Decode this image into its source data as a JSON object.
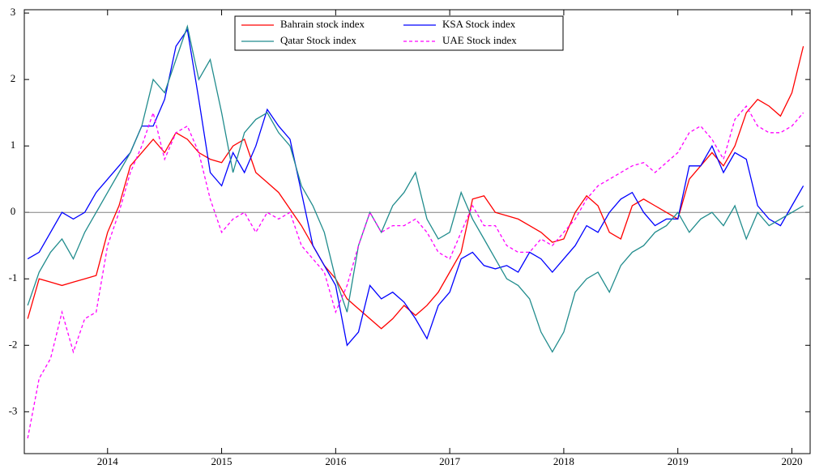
{
  "chart_data": {
    "type": "line",
    "x": [
      2013.3,
      2013.4,
      2013.5,
      2013.6,
      2013.7,
      2013.8,
      2013.9,
      2014.0,
      2014.1,
      2014.2,
      2014.3,
      2014.4,
      2014.5,
      2014.6,
      2014.7,
      2014.8,
      2014.9,
      2015.0,
      2015.1,
      2015.2,
      2015.3,
      2015.4,
      2015.5,
      2015.6,
      2015.7,
      2015.8,
      2015.9,
      2016.0,
      2016.1,
      2016.2,
      2016.3,
      2016.4,
      2016.5,
      2016.6,
      2016.7,
      2016.8,
      2016.9,
      2017.0,
      2017.1,
      2017.2,
      2017.3,
      2017.4,
      2017.5,
      2017.6,
      2017.7,
      2017.8,
      2017.9,
      2018.0,
      2018.1,
      2018.2,
      2018.3,
      2018.4,
      2018.5,
      2018.6,
      2018.7,
      2018.8,
      2018.9,
      2019.0,
      2019.1,
      2019.2,
      2019.3,
      2019.4,
      2019.5,
      2019.6,
      2019.7,
      2019.8,
      2019.9,
      2020.0,
      2020.1
    ],
    "series": [
      {
        "name": "Bahrain stock index",
        "color": "#ff0000",
        "dashed": false,
        "values": [
          -1.6,
          -1.0,
          -1.05,
          -1.1,
          -1.05,
          -1.0,
          -0.95,
          -0.3,
          0.1,
          0.7,
          0.9,
          1.1,
          0.9,
          1.2,
          1.1,
          0.9,
          0.8,
          0.75,
          1.0,
          1.1,
          0.6,
          0.45,
          0.3,
          0.05,
          -0.2,
          -0.5,
          -0.8,
          -1.0,
          -1.3,
          -1.45,
          -1.6,
          -1.75,
          -1.6,
          -1.4,
          -1.55,
          -1.4,
          -1.2,
          -0.9,
          -0.6,
          0.2,
          0.25,
          0.0,
          -0.05,
          -0.1,
          -0.2,
          -0.3,
          -0.45,
          -0.4,
          0.0,
          0.25,
          0.1,
          -0.3,
          -0.4,
          0.1,
          0.2,
          0.1,
          0.0,
          -0.1,
          0.5,
          0.7,
          0.9,
          0.7,
          1.0,
          1.5,
          1.7,
          1.6,
          1.45,
          1.8,
          2.5
        ]
      },
      {
        "name": "KSA Stock index",
        "color": "#0000ff",
        "dashed": false,
        "values": [
          -0.7,
          -0.6,
          -0.3,
          0.0,
          -0.1,
          0.0,
          0.3,
          0.5,
          0.7,
          0.9,
          1.3,
          1.3,
          1.7,
          2.5,
          2.75,
          1.7,
          0.6,
          0.4,
          0.9,
          0.6,
          1.0,
          1.55,
          1.3,
          1.1,
          0.3,
          -0.5,
          -0.8,
          -1.1,
          -2.0,
          -1.8,
          -1.1,
          -1.3,
          -1.2,
          -1.35,
          -1.6,
          -1.9,
          -1.4,
          -1.2,
          -0.7,
          -0.6,
          -0.8,
          -0.85,
          -0.8,
          -0.9,
          -0.6,
          -0.7,
          -0.9,
          -0.7,
          -0.5,
          -0.2,
          -0.3,
          0.0,
          0.2,
          0.3,
          0.0,
          -0.2,
          -0.1,
          -0.1,
          0.7,
          0.7,
          1.0,
          0.6,
          0.9,
          0.8,
          0.1,
          -0.1,
          -0.2,
          0.1,
          0.4
        ]
      },
      {
        "name": "Qatar Stock index",
        "color": "#218c8d",
        "dashed": false,
        "values": [
          -1.4,
          -0.9,
          -0.6,
          -0.4,
          -0.7,
          -0.3,
          0.0,
          0.3,
          0.6,
          0.9,
          1.3,
          2.0,
          1.8,
          2.3,
          2.8,
          2.0,
          2.3,
          1.5,
          0.6,
          1.2,
          1.4,
          1.5,
          1.2,
          1.0,
          0.4,
          0.1,
          -0.3,
          -1.0,
          -1.5,
          -0.5,
          0.0,
          -0.3,
          0.1,
          0.3,
          0.6,
          -0.1,
          -0.4,
          -0.3,
          0.3,
          -0.1,
          -0.4,
          -0.7,
          -1.0,
          -1.1,
          -1.3,
          -1.8,
          -2.1,
          -1.8,
          -1.2,
          -1.0,
          -0.9,
          -1.2,
          -0.8,
          -0.6,
          -0.5,
          -0.3,
          -0.2,
          0.0,
          -0.3,
          -0.1,
          0.0,
          -0.2,
          0.1,
          -0.4,
          0.0,
          -0.2,
          -0.1,
          0.0,
          0.1
        ]
      },
      {
        "name": "UAE Stock index",
        "color": "#ff00ff",
        "dashed": true,
        "values": [
          -3.4,
          -2.5,
          -2.2,
          -1.5,
          -2.1,
          -1.6,
          -1.5,
          -0.5,
          0.0,
          0.6,
          1.0,
          1.5,
          0.8,
          1.2,
          1.3,
          0.9,
          0.2,
          -0.3,
          -0.1,
          0.0,
          -0.3,
          0.0,
          -0.1,
          0.0,
          -0.5,
          -0.7,
          -0.9,
          -1.5,
          -1.1,
          -0.5,
          0.0,
          -0.3,
          -0.2,
          -0.2,
          -0.1,
          -0.3,
          -0.6,
          -0.7,
          -0.3,
          0.1,
          -0.2,
          -0.2,
          -0.5,
          -0.6,
          -0.6,
          -0.4,
          -0.5,
          -0.3,
          -0.1,
          0.2,
          0.4,
          0.5,
          0.6,
          0.7,
          0.75,
          0.6,
          0.75,
          0.9,
          1.2,
          1.3,
          1.1,
          0.8,
          1.4,
          1.6,
          1.3,
          1.2,
          1.2,
          1.3,
          1.5
        ]
      }
    ],
    "xlim": [
      2013.27,
      2020.16
    ],
    "xticks": [
      2014,
      2015,
      2016,
      2017,
      2018,
      2019,
      2020
    ],
    "ylim": [
      -3.63,
      3.05
    ],
    "yticks": [
      -3,
      -2,
      -1,
      0,
      1,
      2,
      3
    ],
    "hline": 0,
    "legend": "top"
  }
}
